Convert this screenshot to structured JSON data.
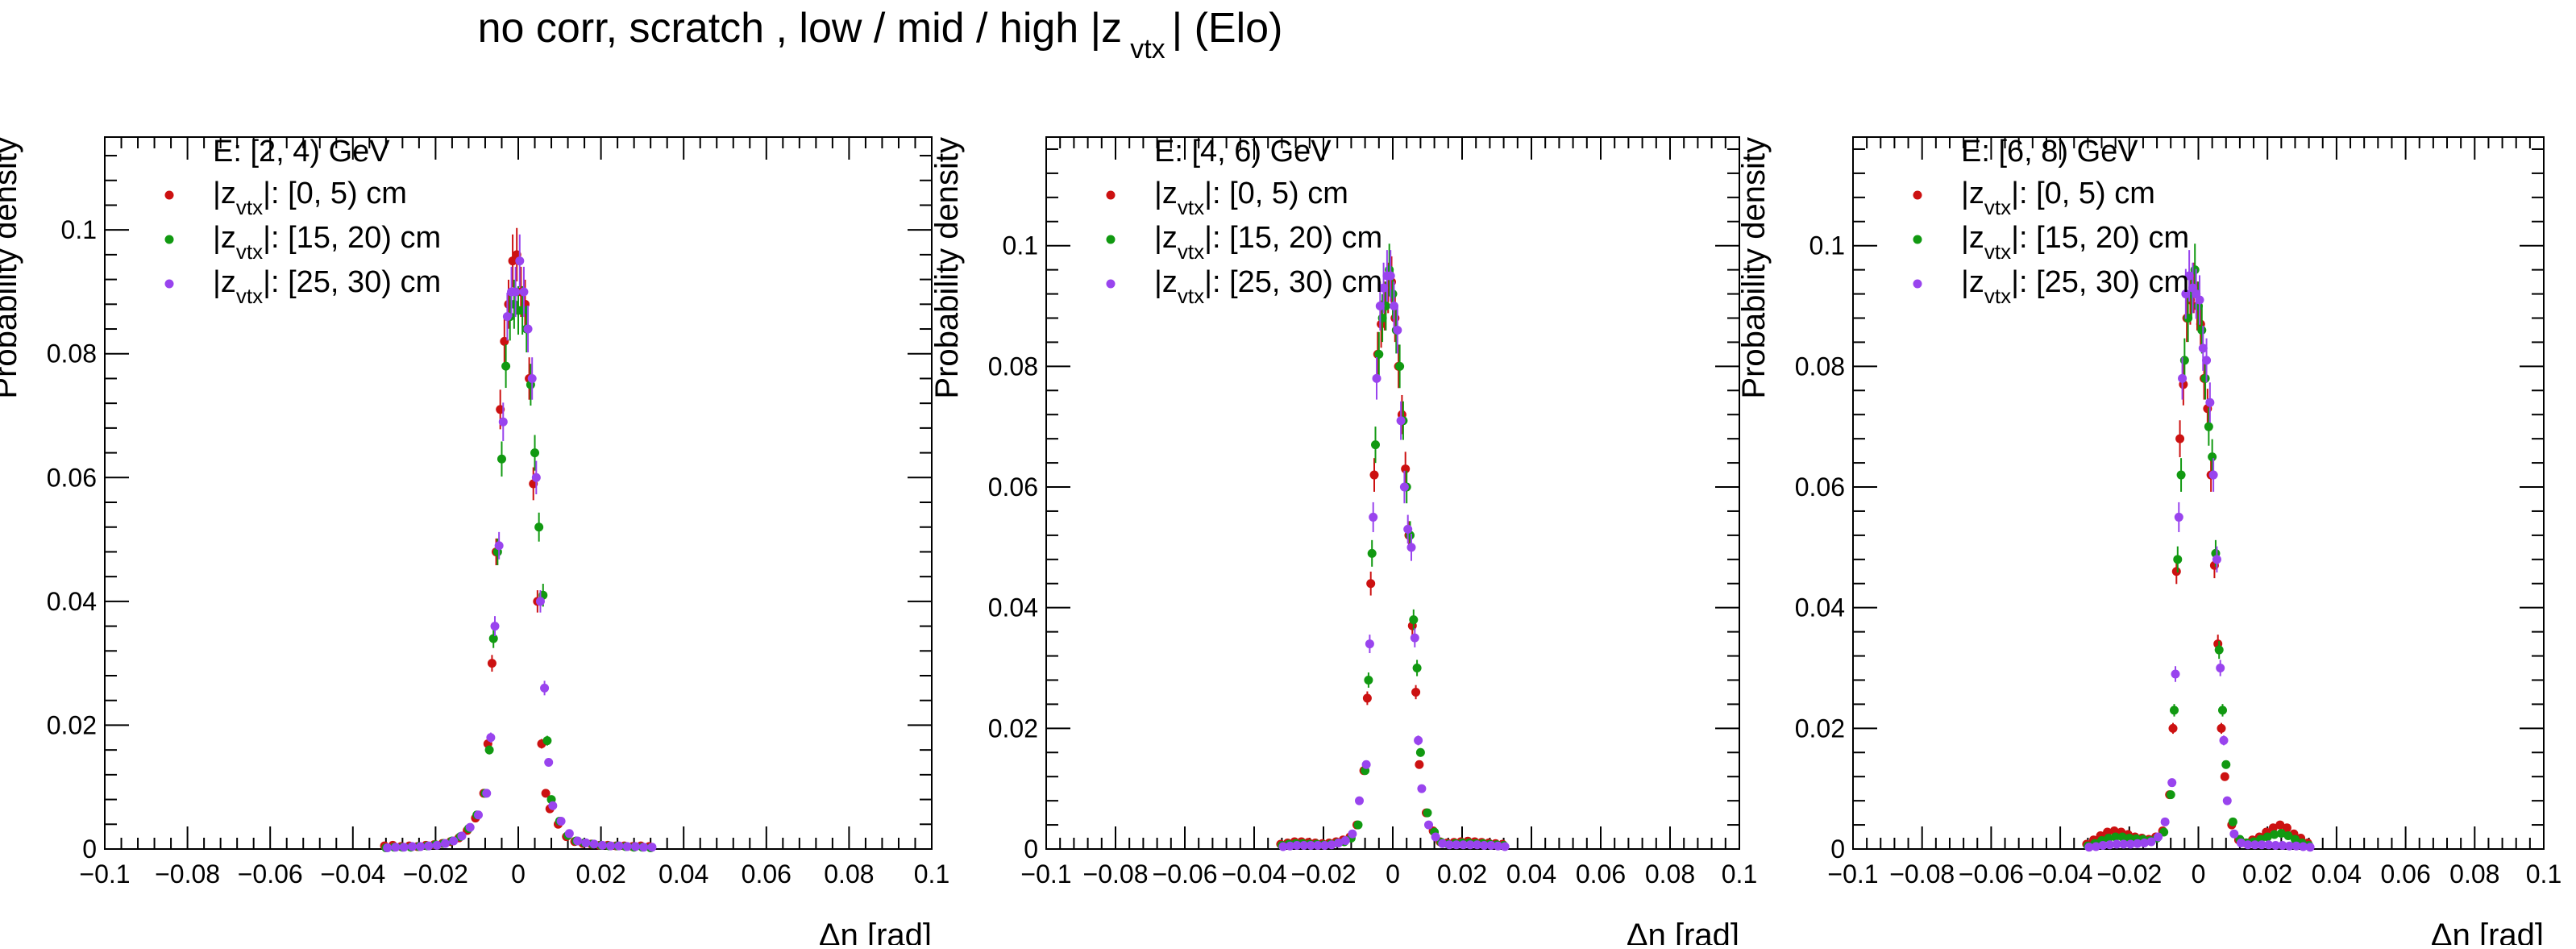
{
  "title": {
    "text": "no corr, scratch  , low / mid / high |z",
    "sub": "vtx",
    "suffix": "|  (Elo)"
  },
  "legend_labels": {
    "prefix": "|z",
    "sub": "vtx",
    "ranges": [
      "|: [0, 5) cm",
      "|: [15, 20) cm",
      "|: [25, 30) cm"
    ]
  },
  "series_colors": [
    "#cc1111",
    "#119911",
    "#9944ee"
  ],
  "x_ticks": [
    "−0.1",
    "−0.08",
    "−0.06",
    "−0.04",
    "−0.02",
    "0",
    "0.02",
    "0.04",
    "0.06",
    "0.08",
    "0.1"
  ],
  "y_ticks": [
    "0",
    "0.02",
    "0.04",
    "0.06",
    "0.08",
    "0.1"
  ],
  "chart_data": [
    {
      "type": "scatter",
      "title": "E: [2, 4) GeV",
      "xlabel": "Δη  [rad]",
      "ylabel": "Probability density",
      "xlim": [
        -0.1,
        0.1
      ],
      "ylim": [
        0,
        0.115
      ],
      "x": [
        -0.032,
        -0.03,
        -0.028,
        -0.026,
        -0.024,
        -0.022,
        -0.02,
        -0.018,
        -0.016,
        -0.014,
        -0.012,
        -0.01,
        -0.008,
        -0.007,
        -0.006,
        -0.005,
        -0.004,
        -0.003,
        -0.002,
        -0.001,
        0.0,
        0.001,
        0.002,
        0.003,
        0.004,
        0.005,
        0.006,
        0.007,
        0.008,
        0.01,
        0.012,
        0.014,
        0.016,
        0.018,
        0.02,
        0.022,
        0.024,
        0.026,
        0.028,
        0.03,
        0.032
      ],
      "series": [
        {
          "name": "|z_vtx|: [0, 5) cm",
          "values": [
            0.0005,
            0.0006,
            0.0004,
            0.0005,
            0.0004,
            0.0006,
            0.0007,
            0.0009,
            0.0012,
            0.0018,
            0.003,
            0.005,
            0.009,
            0.017,
            0.03,
            0.048,
            0.071,
            0.082,
            0.088,
            0.095,
            0.096,
            0.09,
            0.088,
            0.076,
            0.059,
            0.04,
            0.017,
            0.009,
            0.0065,
            0.004,
            0.002,
            0.0012,
            0.0009,
            0.0008,
            0.0006,
            0.0006,
            0.0005,
            0.0005,
            0.0004,
            0.0005,
            0.0004
          ]
        },
        {
          "name": "|z_vtx|: [15, 20) cm",
          "values": [
            0.0002,
            0.0003,
            0.0003,
            0.0003,
            0.0004,
            0.0005,
            0.0007,
            0.0009,
            0.0013,
            0.002,
            0.0033,
            0.0055,
            0.009,
            0.016,
            0.034,
            0.048,
            0.063,
            0.078,
            0.086,
            0.088,
            0.087,
            0.087,
            0.084,
            0.075,
            0.064,
            0.052,
            0.041,
            0.0175,
            0.008,
            0.0045,
            0.0022,
            0.0013,
            0.001,
            0.0008,
            0.0006,
            0.0005,
            0.0005,
            0.0004,
            0.0003,
            0.0003,
            0.0002
          ]
        },
        {
          "name": "|z_vtx|: [25, 30) cm",
          "values": [
            0.0002,
            0.0003,
            0.0003,
            0.0004,
            0.0004,
            0.0005,
            0.0006,
            0.0009,
            0.0013,
            0.0021,
            0.0035,
            0.0055,
            0.009,
            0.018,
            0.036,
            0.049,
            0.069,
            0.086,
            0.09,
            0.09,
            0.095,
            0.09,
            0.084,
            0.076,
            0.06,
            0.04,
            0.026,
            0.014,
            0.007,
            0.0045,
            0.0025,
            0.0013,
            0.001,
            0.0008,
            0.0006,
            0.0005,
            0.0005,
            0.0004,
            0.0004,
            0.0003,
            0.0003
          ]
        }
      ]
    },
    {
      "type": "scatter",
      "title": "E: [4, 6) GeV",
      "xlabel": "Δη  [rad]",
      "ylabel": "Probability density",
      "xlim": [
        -0.1,
        0.1
      ],
      "ylim": [
        0,
        0.118
      ],
      "x": [
        -0.032,
        -0.03,
        -0.028,
        -0.026,
        -0.024,
        -0.022,
        -0.02,
        -0.018,
        -0.016,
        -0.014,
        -0.012,
        -0.01,
        -0.008,
        -0.007,
        -0.006,
        -0.005,
        -0.004,
        -0.003,
        -0.002,
        -0.001,
        0.0,
        0.001,
        0.002,
        0.003,
        0.004,
        0.005,
        0.006,
        0.007,
        0.008,
        0.01,
        0.012,
        0.014,
        0.016,
        0.018,
        0.02,
        0.022,
        0.024,
        0.026,
        0.028,
        0.03,
        0.032
      ],
      "series": [
        {
          "name": "|z_vtx|: [0, 5) cm",
          "values": [
            0.0008,
            0.001,
            0.0012,
            0.0012,
            0.0011,
            0.001,
            0.0009,
            0.001,
            0.0012,
            0.0015,
            0.002,
            0.004,
            0.013,
            0.025,
            0.044,
            0.062,
            0.082,
            0.087,
            0.09,
            0.093,
            0.094,
            0.088,
            0.08,
            0.072,
            0.063,
            0.052,
            0.037,
            0.026,
            0.014,
            0.006,
            0.003,
            0.0012,
            0.001,
            0.0011,
            0.0012,
            0.0013,
            0.0012,
            0.0011,
            0.001,
            0.0009,
            0.0008
          ]
        },
        {
          "name": "|z_vtx|: [15, 20) cm",
          "values": [
            0.0006,
            0.0008,
            0.0009,
            0.0009,
            0.0008,
            0.0008,
            0.0007,
            0.0008,
            0.001,
            0.0012,
            0.0018,
            0.004,
            0.013,
            0.028,
            0.049,
            0.067,
            0.082,
            0.088,
            0.09,
            0.096,
            0.092,
            0.086,
            0.08,
            0.071,
            0.06,
            0.052,
            0.038,
            0.03,
            0.016,
            0.006,
            0.0028,
            0.0011,
            0.0008,
            0.0009,
            0.001,
            0.001,
            0.0009,
            0.0009,
            0.0008,
            0.0007,
            0.0006
          ]
        },
        {
          "name": "|z_vtx|: [25, 30) cm",
          "values": [
            0.0004,
            0.0005,
            0.0006,
            0.0006,
            0.0006,
            0.0006,
            0.0006,
            0.0007,
            0.001,
            0.0014,
            0.0025,
            0.008,
            0.014,
            0.034,
            0.055,
            0.078,
            0.09,
            0.093,
            0.095,
            0.095,
            0.09,
            0.086,
            0.071,
            0.06,
            0.053,
            0.05,
            0.035,
            0.018,
            0.01,
            0.004,
            0.002,
            0.0009,
            0.0007,
            0.0007,
            0.0007,
            0.0007,
            0.0007,
            0.0006,
            0.0006,
            0.0005,
            0.0004
          ]
        }
      ]
    },
    {
      "type": "scatter",
      "title": "E: [6, 8) GeV",
      "xlabel": "Δη  [rad]",
      "ylabel": "Probability density",
      "xlim": [
        -0.1,
        0.1
      ],
      "ylim": [
        0,
        0.118
      ],
      "x": [
        -0.032,
        -0.03,
        -0.028,
        -0.026,
        -0.024,
        -0.022,
        -0.02,
        -0.018,
        -0.016,
        -0.014,
        -0.012,
        -0.01,
        -0.008,
        -0.007,
        -0.006,
        -0.005,
        -0.004,
        -0.003,
        -0.002,
        -0.001,
        0.0,
        0.001,
        0.002,
        0.003,
        0.004,
        0.005,
        0.006,
        0.007,
        0.008,
        0.01,
        0.012,
        0.014,
        0.016,
        0.018,
        0.02,
        0.022,
        0.024,
        0.026,
        0.028,
        0.03,
        0.032
      ],
      "series": [
        {
          "name": "|z_vtx|: [0, 5) cm",
          "values": [
            0.0008,
            0.0015,
            0.0022,
            0.0028,
            0.003,
            0.0028,
            0.0024,
            0.002,
            0.0018,
            0.0016,
            0.002,
            0.003,
            0.009,
            0.02,
            0.046,
            0.068,
            0.077,
            0.088,
            0.091,
            0.093,
            0.09,
            0.087,
            0.078,
            0.073,
            0.062,
            0.047,
            0.034,
            0.02,
            0.012,
            0.004,
            0.0015,
            0.001,
            0.0015,
            0.002,
            0.0028,
            0.0035,
            0.004,
            0.0035,
            0.0025,
            0.0018,
            0.001
          ]
        },
        {
          "name": "|z_vtx|: [15, 20) cm",
          "values": [
            0.0005,
            0.0009,
            0.0014,
            0.0018,
            0.002,
            0.002,
            0.0018,
            0.0017,
            0.0016,
            0.0014,
            0.0018,
            0.0028,
            0.009,
            0.023,
            0.048,
            0.062,
            0.081,
            0.088,
            0.092,
            0.096,
            0.09,
            0.086,
            0.078,
            0.07,
            0.065,
            0.049,
            0.033,
            0.023,
            0.014,
            0.0045,
            0.0016,
            0.001,
            0.0012,
            0.0016,
            0.002,
            0.0024,
            0.0026,
            0.0022,
            0.0016,
            0.001,
            0.0006
          ]
        },
        {
          "name": "|z_vtx|: [25, 30) cm",
          "values": [
            0.0003,
            0.0004,
            0.0006,
            0.0007,
            0.0008,
            0.0008,
            0.0008,
            0.0009,
            0.001,
            0.0012,
            0.002,
            0.0045,
            0.011,
            0.029,
            0.055,
            0.078,
            0.092,
            0.095,
            0.093,
            0.092,
            0.091,
            0.083,
            0.081,
            0.074,
            0.062,
            0.048,
            0.03,
            0.018,
            0.008,
            0.0025,
            0.001,
            0.0007,
            0.0007,
            0.0007,
            0.0007,
            0.0006,
            0.0006,
            0.0005,
            0.0005,
            0.0004,
            0.0003
          ]
        }
      ]
    }
  ]
}
